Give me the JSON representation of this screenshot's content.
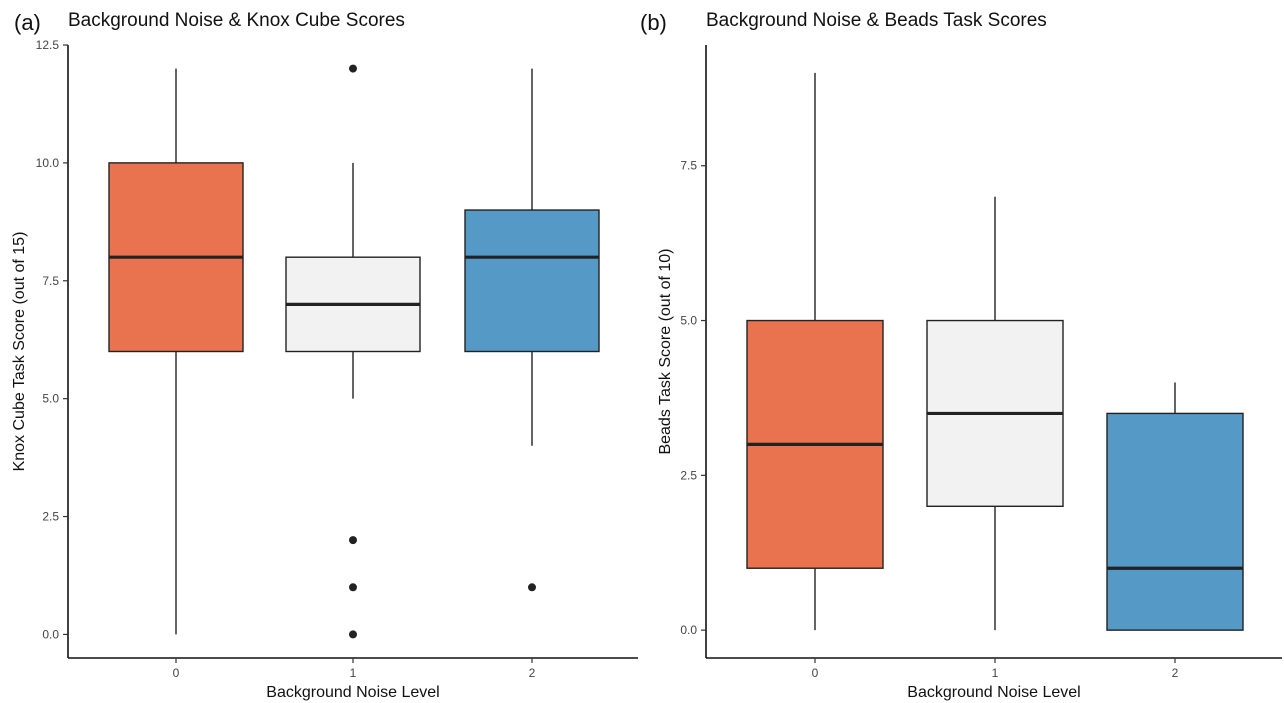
{
  "colors": {
    "level_0": "#E8734E",
    "level_1": "#F2F2F2",
    "level_2": "#5599C6",
    "ink": "#222222"
  },
  "chart_data": [
    {
      "type": "box",
      "panel_label": "(a)",
      "title": "Background Noise & Knox Cube Scores",
      "xlabel": "Background Noise Level",
      "ylabel": "Knox Cube Task Score (out of 15)",
      "ylim": [
        -0.5,
        12.5
      ],
      "yticks": [
        "0.0",
        "2.5",
        "5.0",
        "7.5",
        "10.0",
        "12.5"
      ],
      "ytick_values": [
        0,
        2.5,
        5,
        7.5,
        10,
        12.5
      ],
      "categories": [
        "0",
        "1",
        "2"
      ],
      "boxes": [
        {
          "category": "0",
          "whisker_low": 0,
          "q1": 6,
          "median": 8,
          "q3": 10,
          "whisker_high": 12,
          "outliers": []
        },
        {
          "category": "1",
          "whisker_low": 5,
          "q1": 6,
          "median": 7,
          "q3": 8,
          "whisker_high": 10,
          "outliers": [
            12,
            2,
            1,
            0
          ]
        },
        {
          "category": "2",
          "whisker_low": 4,
          "q1": 6,
          "median": 8,
          "q3": 9,
          "whisker_high": 12,
          "outliers": [
            1
          ]
        }
      ]
    },
    {
      "type": "box",
      "panel_label": "(b)",
      "title": "Background Noise & Beads Task Scores",
      "xlabel": "Background Noise Level",
      "ylabel": "Beads Task Score (out of 10)",
      "ylim": [
        -0.45,
        9.45
      ],
      "yticks": [
        "0.0",
        "2.5",
        "5.0",
        "7.5"
      ],
      "ytick_values": [
        0,
        2.5,
        5,
        7.5
      ],
      "categories": [
        "0",
        "1",
        "2"
      ],
      "boxes": [
        {
          "category": "0",
          "whisker_low": 0,
          "q1": 1,
          "median": 3,
          "q3": 5,
          "whisker_high": 9,
          "outliers": []
        },
        {
          "category": "1",
          "whisker_low": 0,
          "q1": 2,
          "median": 3.5,
          "q3": 5,
          "whisker_high": 7,
          "outliers": []
        },
        {
          "category": "2",
          "whisker_low": 0,
          "q1": 0,
          "median": 1,
          "q3": 3.5,
          "whisker_high": 4,
          "outliers": []
        }
      ]
    }
  ]
}
